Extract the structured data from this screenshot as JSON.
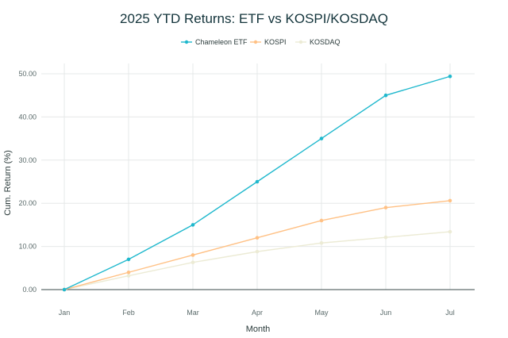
{
  "chart_data": {
    "type": "line",
    "title": "2025 YTD Returns: ETF vs KOSPI/KOSDAQ",
    "xlabel": "Month",
    "ylabel": "Cum. Return (%)",
    "categories": [
      "Jan",
      "Feb",
      "Mar",
      "Apr",
      "May",
      "Jun",
      "Jul"
    ],
    "ylim": [
      0,
      50
    ],
    "yticks": [
      "0.00",
      "10.00",
      "20.00",
      "30.00",
      "40.00",
      "50.00"
    ],
    "grid": true,
    "legend_position": "top-center",
    "series": [
      {
        "name": "Chameleon ETF",
        "color": "#1fb8cd",
        "values": [
          0,
          7,
          15,
          25,
          35,
          45,
          49.4
        ]
      },
      {
        "name": "KOSPI",
        "color": "#ffc185",
        "values": [
          0,
          4,
          8,
          12,
          16,
          19,
          20.6
        ]
      },
      {
        "name": "KOSDAQ",
        "color": "#ecebd5",
        "values": [
          0,
          3.2,
          6.3,
          8.8,
          10.8,
          12.1,
          13.4
        ]
      }
    ]
  }
}
